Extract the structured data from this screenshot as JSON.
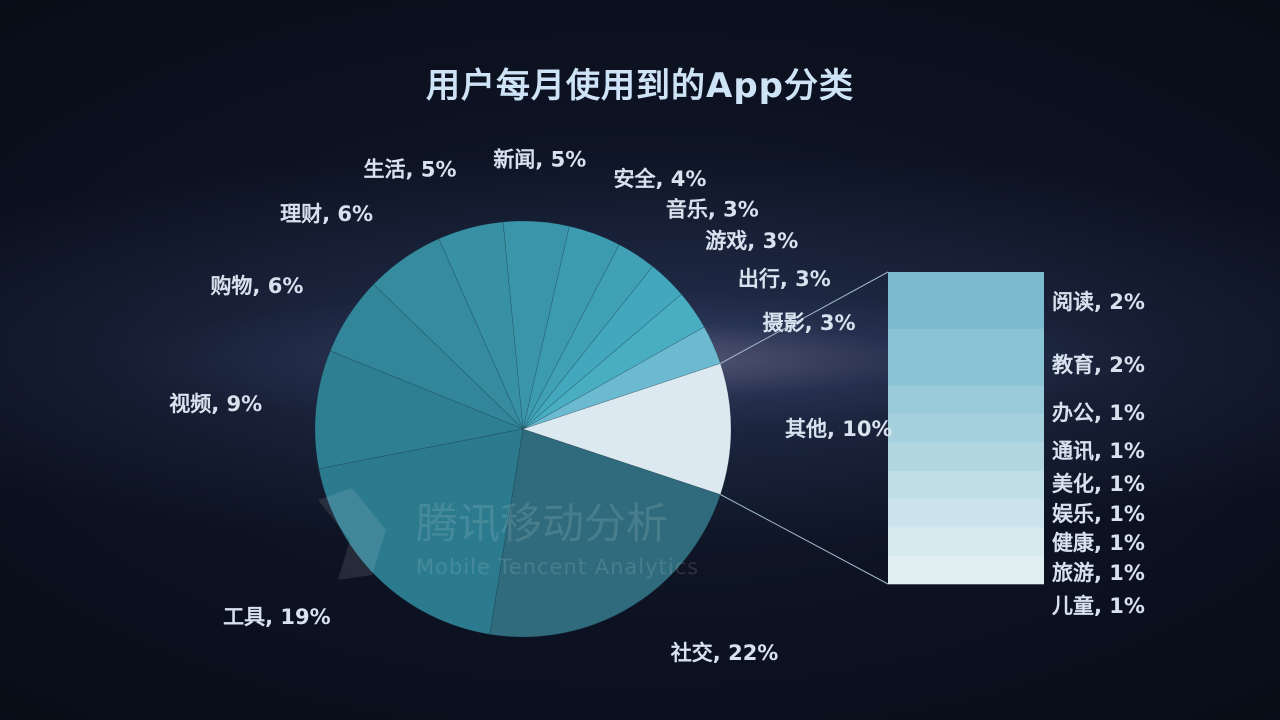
{
  "chart_data": {
    "type": "pie",
    "title": "用户每月使用到的App分类",
    "slices": [
      {
        "label": "社交",
        "value": 22,
        "text": "社交, 22%",
        "color": "#2f6b7c"
      },
      {
        "label": "工具",
        "value": 19,
        "text": "工具, 19%",
        "color": "#2c7a8e"
      },
      {
        "label": "视频",
        "value": 9,
        "text": "视频, 9%",
        "color": "#2f7f92"
      },
      {
        "label": "购物",
        "value": 6,
        "text": "购物, 6%",
        "color": "#338699"
      },
      {
        "label": "理财",
        "value": 6,
        "text": "理财, 6%",
        "color": "#368b9f"
      },
      {
        "label": "生活",
        "value": 5,
        "text": "生活, 5%",
        "color": "#3890a4"
      },
      {
        "label": "新闻",
        "value": 5,
        "text": "新闻, 5%",
        "color": "#3a95aa"
      },
      {
        "label": "安全",
        "value": 4,
        "text": "安全, 4%",
        "color": "#3d9bb0"
      },
      {
        "label": "音乐",
        "value": 3,
        "text": "音乐, 3%",
        "color": "#40a1b6"
      },
      {
        "label": "游戏",
        "value": 3,
        "text": "游戏, 3%",
        "color": "#43a7bd"
      },
      {
        "label": "出行",
        "value": 3,
        "text": "出行, 3%",
        "color": "#4aaec3"
      },
      {
        "label": "摄影",
        "value": 3,
        "text": "摄影, 3%",
        "color": "#6cbad0"
      },
      {
        "label": "其他",
        "value": 10,
        "text": "其他, 10%",
        "color": "#dde9f1"
      }
    ],
    "breakdown": {
      "of": "其他",
      "items": [
        {
          "label": "阅读",
          "value": 2,
          "text": "阅读, 2%",
          "color": "#7cbad0"
        },
        {
          "label": "教育",
          "value": 2,
          "text": "教育, 2%",
          "color": "#8ac3d5"
        },
        {
          "label": "办公",
          "value": 1,
          "text": "办公, 1%",
          "color": "#98cad9"
        },
        {
          "label": "通讯",
          "value": 1,
          "text": "通讯, 1%",
          "color": "#a5d0dd"
        },
        {
          "label": "美化",
          "value": 1,
          "text": "美化, 1%",
          "color": "#b2d7e1"
        },
        {
          "label": "娱乐",
          "value": 1,
          "text": "娱乐, 1%",
          "color": "#bfdee6"
        },
        {
          "label": "健康",
          "value": 1,
          "text": "健康, 1%",
          "color": "#cbe4eb"
        },
        {
          "label": "旅游",
          "value": 1,
          "text": "旅游, 1%",
          "color": "#d6eaf0"
        },
        {
          "label": "儿童",
          "value": 1,
          "text": "儿童, 1%",
          "color": "#e1eff3"
        }
      ]
    },
    "watermark": {
      "cn": "腾讯移动分析",
      "en": "Mobile Tencent Analytics"
    }
  }
}
